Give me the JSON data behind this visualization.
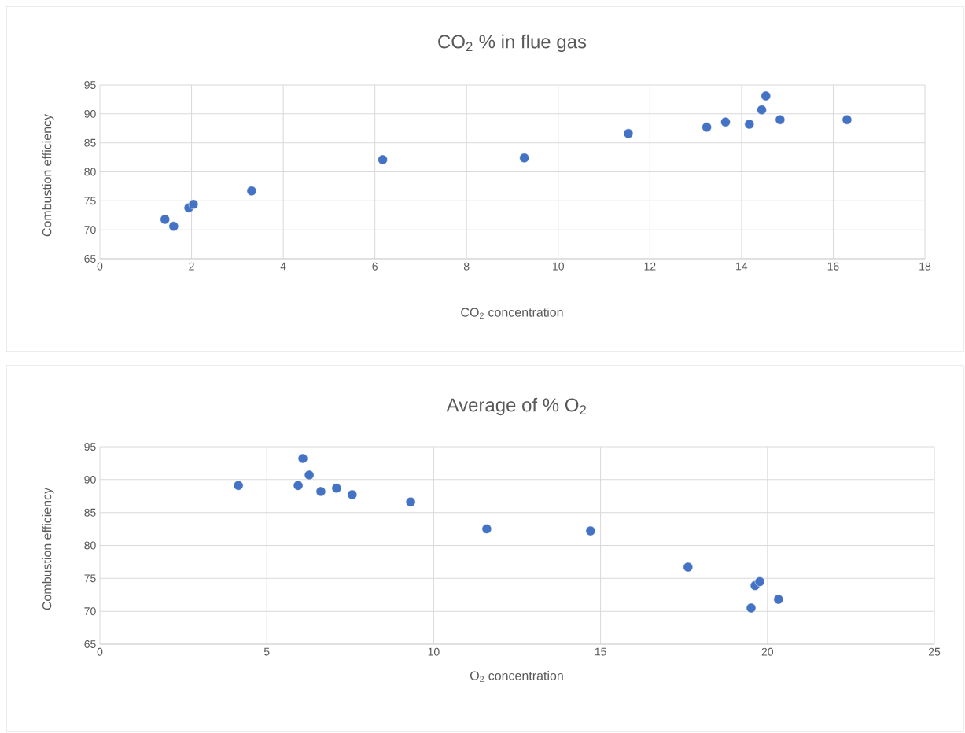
{
  "chart_data": [
    {
      "type": "scatter",
      "title": "CO$_{2}$ % in flue gas",
      "xlabel": "CO$_{2}$ concentration",
      "ylabel": "Combustion efficiency",
      "color": "#4472c4",
      "marker": "circle",
      "grid": true,
      "x": [
        1.42,
        1.61,
        1.94,
        2.04,
        3.31,
        6.17,
        9.26,
        11.53,
        13.24,
        13.65,
        14.17,
        14.44,
        14.53,
        14.84,
        16.3
      ],
      "values": [
        71.8,
        70.6,
        73.8,
        74.4,
        76.7,
        82.1,
        82.4,
        86.6,
        87.7,
        88.6,
        88.2,
        90.7,
        93.1,
        89.0,
        89.0
      ],
      "xlim": [
        0,
        18
      ],
      "ylim": [
        65,
        95
      ],
      "xticks": [
        0,
        2,
        4,
        6,
        8,
        10,
        12,
        14,
        16,
        18
      ],
      "yticks": [
        65,
        70,
        75,
        80,
        85,
        90,
        95
      ]
    },
    {
      "type": "scatter",
      "title": "Average of % O$_{2}$",
      "xlabel": "O$_{2}$ concentration",
      "ylabel": "Combustion efficiency",
      "color": "#4472c4",
      "marker": "circle",
      "grid": true,
      "x": [
        4.15,
        6.08,
        5.94,
        6.27,
        6.62,
        7.09,
        7.56,
        9.31,
        11.59,
        14.7,
        17.62,
        19.63,
        19.77,
        19.51,
        20.33
      ],
      "values": [
        89.1,
        93.2,
        89.1,
        90.7,
        88.2,
        88.7,
        87.7,
        86.6,
        82.5,
        82.2,
        76.7,
        73.9,
        74.5,
        70.5,
        71.8
      ],
      "xlim": [
        0,
        25
      ],
      "ylim": [
        65,
        95
      ],
      "xticks": [
        0,
        5,
        10,
        15,
        20,
        25
      ],
      "yticks": [
        65,
        70,
        75,
        80,
        85,
        90,
        95
      ]
    }
  ]
}
